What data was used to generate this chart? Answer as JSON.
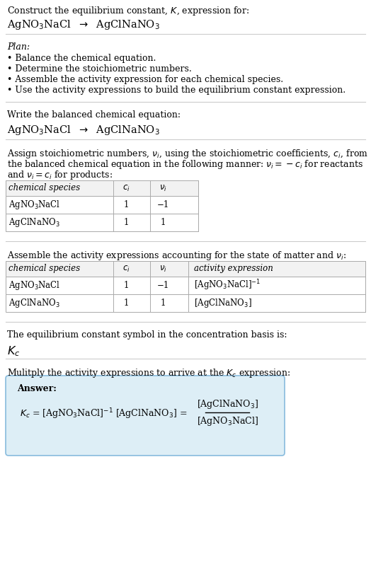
{
  "bg_color": "#ffffff",
  "text_color": "#000000",
  "section_bg": "#ddeef6",
  "section_border": "#88bbdd",
  "title_line1": "Construct the equilibrium constant, $K$, expression for:",
  "plan_header": "Plan:",
  "plan_items": [
    "• Balance the chemical equation.",
    "• Determine the stoichiometric numbers.",
    "• Assemble the activity expression for each chemical species.",
    "• Use the activity expressions to build the equilibrium constant expression."
  ],
  "balanced_header": "Write the balanced chemical equation:",
  "stoich_line1": "Assign stoichiometric numbers, $\\nu_i$, using the stoichiometric coefficients, $c_i$, from",
  "stoich_line2": "the balanced chemical equation in the following manner: $\\nu_i = -c_i$ for reactants",
  "stoich_line3": "and $\\nu_i = c_i$ for products:",
  "table1_headers": [
    "chemical species",
    "$c_i$",
    "$\\nu_i$"
  ],
  "table1_rows": [
    [
      "AgNO$_3$NaCl",
      "1",
      "−1"
    ],
    [
      "AgClNaNO$_3$",
      "1",
      "1"
    ]
  ],
  "assemble_header": "Assemble the activity expressions accounting for the state of matter and $\\nu_i$:",
  "table2_headers": [
    "chemical species",
    "$c_i$",
    "$\\nu_i$",
    "activity expression"
  ],
  "table2_rows": [
    [
      "AgNO$_3$NaCl",
      "1",
      "−1",
      "[AgNO$_3$NaCl]$^{-1}$"
    ],
    [
      "AgClNaNO$_3$",
      "1",
      "1",
      "[AgClNaNO$_3$]"
    ]
  ],
  "kc_header": "The equilibrium constant symbol in the concentration basis is:",
  "kc_symbol": "$K_c$",
  "multiply_header": "Mulitply the activity expressions to arrive at the $K_c$ expression:",
  "answer_label": "Answer:",
  "fs": 9.0,
  "fs_small": 8.5,
  "fs_big": 10.5
}
